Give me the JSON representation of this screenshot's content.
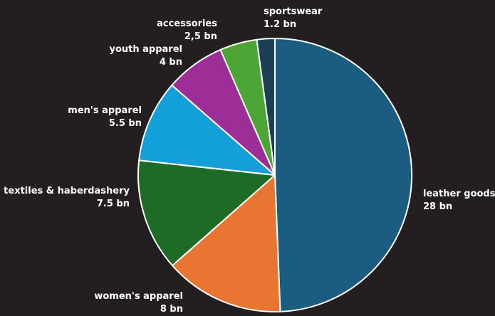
{
  "chart_data": {
    "type": "pie",
    "unit": "bn",
    "slices": [
      {
        "name": "leather goods",
        "value": 28,
        "value_label": "28 bn",
        "color": "#1a5d80"
      },
      {
        "name": "women's apparel",
        "value": 8,
        "value_label": "8 bn",
        "color": "#e97532"
      },
      {
        "name": "textiles & haberdashery",
        "value": 7.5,
        "value_label": "7.5 bn",
        "color": "#1e6b25"
      },
      {
        "name": "men's apparel",
        "value": 5.5,
        "value_label": "5.5 bn",
        "color": "#139fd9"
      },
      {
        "name": "youth apparel",
        "value": 4,
        "value_label": "4 bn",
        "color": "#9d2e98"
      },
      {
        "name": "accessories",
        "value": 2.5,
        "value_label": "2,5 bn",
        "color": "#4da535"
      },
      {
        "name": "sportswear",
        "value": 1.2,
        "value_label": "1.2 bn",
        "color": "#1c3f56"
      }
    ]
  }
}
